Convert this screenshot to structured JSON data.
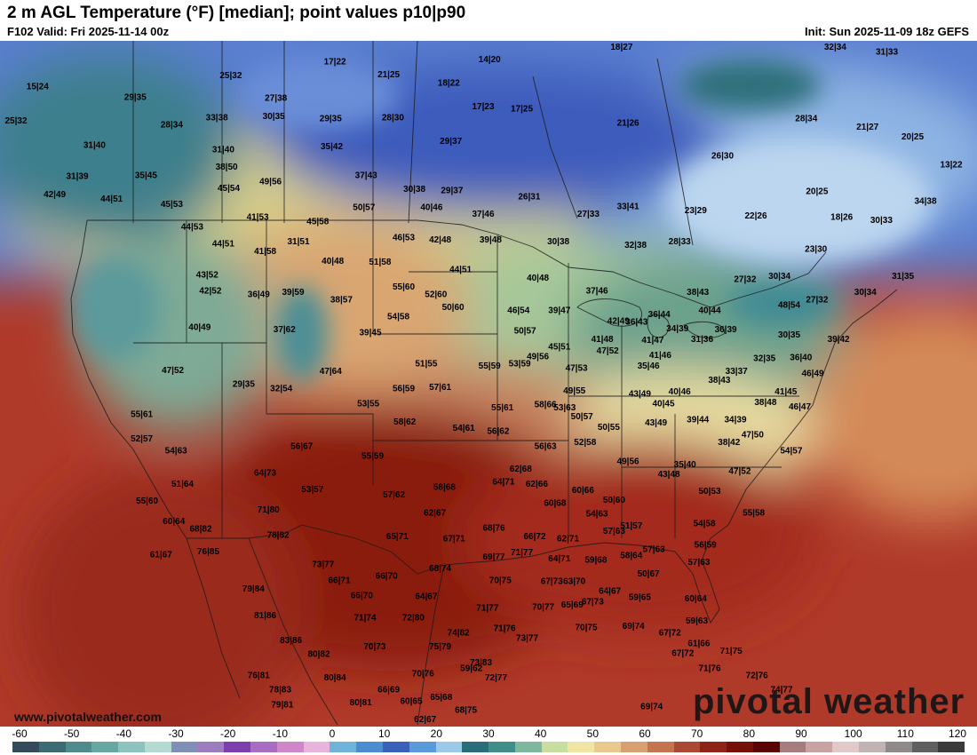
{
  "header": {
    "title": "2 m AGL Temperature (°F) [median]; point values p10|p90",
    "valid": "F102 Valid: Fri 2025-11-14 00z",
    "init": "Init: Sun 2025-11-09 18z GEFS"
  },
  "footer": {
    "website": "www.pivotalweather.com",
    "watermark": "pivotal weather"
  },
  "colorbar": {
    "ticks": [
      "-60",
      "-50",
      "-40",
      "-30",
      "-20",
      "-10",
      "0",
      "10",
      "20",
      "30",
      "40",
      "50",
      "60",
      "70",
      "80",
      "90",
      "100",
      "110",
      "120"
    ],
    "colors": [
      "#334b5a",
      "#3c6b73",
      "#4e8b8a",
      "#67a8a3",
      "#8cc3bc",
      "#b3dbd2",
      "#7f8fb6",
      "#9c7ec0",
      "#7d3fae",
      "#a86cc2",
      "#cf87c9",
      "#e8b3dd",
      "#6fb3d8",
      "#4a8ed0",
      "#3862b8",
      "#5a9ad8",
      "#9cc9e8",
      "#2a6e7a",
      "#3f8e8a",
      "#7fb8a0",
      "#c8dea0",
      "#efe6a6",
      "#e9c98c",
      "#d8a071",
      "#c47550",
      "#aa4a34",
      "#8e2418",
      "#741008",
      "#5a0404",
      "#a67c7c",
      "#c9a3a3",
      "#e2c9c9",
      "#bfb3b3",
      "#8e8a8a",
      "#606060",
      "#3a3a3a"
    ]
  },
  "labels": [
    {
      "t": "15|24",
      "lon": -134.5,
      "lat": 56.5
    },
    {
      "t": "25|32",
      "lon": -116.5,
      "lat": 57.5
    },
    {
      "t": "17|22",
      "lon": -106.8,
      "lat": 58.8
    },
    {
      "t": "21|25",
      "lon": -101.8,
      "lat": 57.6
    },
    {
      "t": "14|20",
      "lon": -92.4,
      "lat": 59.0
    },
    {
      "t": "18|22",
      "lon": -96.2,
      "lat": 56.8
    },
    {
      "t": "18|27",
      "lon": -80.1,
      "lat": 60.6
    },
    {
      "t": "32|34",
      "lon": -60.2,
      "lat": 60.4
    },
    {
      "t": "31|33",
      "lon": -55.4,
      "lat": 59.7
    },
    {
      "t": "25|32",
      "lon": -136.9,
      "lat": 53.3
    },
    {
      "t": "29|35",
      "lon": -125.4,
      "lat": 55.5
    },
    {
      "t": "27|38",
      "lon": -112.3,
      "lat": 55.4
    },
    {
      "t": "28|30",
      "lon": -101.4,
      "lat": 53.6
    },
    {
      "t": "17|23",
      "lon": -93.0,
      "lat": 54.6
    },
    {
      "t": "17|25",
      "lon": -89.4,
      "lat": 54.4
    },
    {
      "t": "31|40",
      "lon": -129.2,
      "lat": 51.0
    },
    {
      "t": "28|34",
      "lon": -122.0,
      "lat": 52.9
    },
    {
      "t": "33|38",
      "lon": -117.8,
      "lat": 53.6
    },
    {
      "t": "30|35",
      "lon": -112.5,
      "lat": 53.7
    },
    {
      "t": "29|35",
      "lon": -107.2,
      "lat": 53.5
    },
    {
      "t": "29|37",
      "lon": -96.0,
      "lat": 51.4
    },
    {
      "t": "21|26",
      "lon": -79.5,
      "lat": 53.1
    },
    {
      "t": "28|34",
      "lon": -62.9,
      "lat": 53.5
    },
    {
      "t": "21|27",
      "lon": -57.2,
      "lat": 52.7
    },
    {
      "t": "20|25",
      "lon": -53.0,
      "lat": 51.8
    },
    {
      "t": "13|22",
      "lon": -49.4,
      "lat": 49.2
    },
    {
      "t": "31|39",
      "lon": -130.8,
      "lat": 48.1
    },
    {
      "t": "31|40",
      "lon": -117.2,
      "lat": 50.6
    },
    {
      "t": "35|42",
      "lon": -107.1,
      "lat": 50.9
    },
    {
      "t": "26|30",
      "lon": -70.7,
      "lat": 50.0
    },
    {
      "t": "42|49",
      "lon": -132.9,
      "lat": 46.4
    },
    {
      "t": "38|50",
      "lon": -116.9,
      "lat": 49.0
    },
    {
      "t": "35|45",
      "lon": -124.4,
      "lat": 48.2
    },
    {
      "t": "37|43",
      "lon": -103.9,
      "lat": 48.2
    },
    {
      "t": "44|51",
      "lon": -127.6,
      "lat": 46.0
    },
    {
      "t": "45|54",
      "lon": -116.7,
      "lat": 47.0
    },
    {
      "t": "49|56",
      "lon": -112.8,
      "lat": 47.6
    },
    {
      "t": "30|38",
      "lon": -99.4,
      "lat": 46.9
    },
    {
      "t": "29|37",
      "lon": -95.9,
      "lat": 46.8
    },
    {
      "t": "26|31",
      "lon": -88.7,
      "lat": 46.2
    },
    {
      "t": "20|25",
      "lon": -61.9,
      "lat": 46.7
    },
    {
      "t": "34|38",
      "lon": -51.8,
      "lat": 45.8
    },
    {
      "t": "45|53",
      "lon": -122.0,
      "lat": 45.5
    },
    {
      "t": "50|57",
      "lon": -104.1,
      "lat": 45.2
    },
    {
      "t": "40|46",
      "lon": -97.8,
      "lat": 45.2
    },
    {
      "t": "37|46",
      "lon": -93.0,
      "lat": 44.6
    },
    {
      "t": "27|33",
      "lon": -83.2,
      "lat": 44.6
    },
    {
      "t": "33|41",
      "lon": -79.5,
      "lat": 45.3
    },
    {
      "t": "23|29",
      "lon": -73.2,
      "lat": 44.9
    },
    {
      "t": "22|26",
      "lon": -67.6,
      "lat": 44.4
    },
    {
      "t": "18|26",
      "lon": -59.6,
      "lat": 44.3
    },
    {
      "t": "30|33",
      "lon": -55.9,
      "lat": 44.0
    },
    {
      "t": "44|53",
      "lon": -120.1,
      "lat": 43.4
    },
    {
      "t": "41|53",
      "lon": -114.0,
      "lat": 44.3
    },
    {
      "t": "45|58",
      "lon": -108.4,
      "lat": 43.9
    },
    {
      "t": "46|53",
      "lon": -100.4,
      "lat": 42.4
    },
    {
      "t": "42|48",
      "lon": -97.0,
      "lat": 42.2
    },
    {
      "t": "39|48",
      "lon": -92.3,
      "lat": 42.2
    },
    {
      "t": "30|38",
      "lon": -86.0,
      "lat": 42.0
    },
    {
      "t": "32|38",
      "lon": -78.8,
      "lat": 41.7
    },
    {
      "t": "28|33",
      "lon": -74.7,
      "lat": 42.0
    },
    {
      "t": "23|30",
      "lon": -62.0,
      "lat": 41.3
    },
    {
      "t": "44|51",
      "lon": -117.2,
      "lat": 41.8
    },
    {
      "t": "41|58",
      "lon": -113.3,
      "lat": 41.1
    },
    {
      "t": "31|51",
      "lon": -110.2,
      "lat": 42.0
    },
    {
      "t": "40|48",
      "lon": -107.0,
      "lat": 40.2
    },
    {
      "t": "51|58",
      "lon": -102.6,
      "lat": 40.1
    },
    {
      "t": "44|51",
      "lon": -95.1,
      "lat": 39.4
    },
    {
      "t": "40|48",
      "lon": -87.9,
      "lat": 38.6
    },
    {
      "t": "27|32",
      "lon": -68.6,
      "lat": 38.5
    },
    {
      "t": "30|34",
      "lon": -65.4,
      "lat": 38.8
    },
    {
      "t": "30|34",
      "lon": -57.4,
      "lat": 37.3
    },
    {
      "t": "31|35",
      "lon": -53.9,
      "lat": 38.8
    },
    {
      "t": "43|52",
      "lon": -118.7,
      "lat": 38.9
    },
    {
      "t": "55|60",
      "lon": -100.4,
      "lat": 37.8
    },
    {
      "t": "52|60",
      "lon": -97.4,
      "lat": 37.1
    },
    {
      "t": "37|46",
      "lon": -82.4,
      "lat": 37.4
    },
    {
      "t": "38|43",
      "lon": -73.0,
      "lat": 37.3
    },
    {
      "t": "48|54",
      "lon": -64.5,
      "lat": 36.1
    },
    {
      "t": "27|32",
      "lon": -61.9,
      "lat": 36.6
    },
    {
      "t": "42|52",
      "lon": -118.4,
      "lat": 37.4
    },
    {
      "t": "36|49",
      "lon": -113.9,
      "lat": 37.1
    },
    {
      "t": "39|59",
      "lon": -110.7,
      "lat": 37.3
    },
    {
      "t": "38|57",
      "lon": -106.2,
      "lat": 36.6
    },
    {
      "t": "50|60",
      "lon": -95.8,
      "lat": 35.9
    },
    {
      "t": "46|54",
      "lon": -89.7,
      "lat": 35.6
    },
    {
      "t": "39|47",
      "lon": -85.9,
      "lat": 35.6
    },
    {
      "t": "40|44",
      "lon": -71.9,
      "lat": 35.6
    },
    {
      "t": "36|44",
      "lon": -76.6,
      "lat": 35.2
    },
    {
      "t": "54|58",
      "lon": -100.9,
      "lat": 35.0
    },
    {
      "t": "42|49",
      "lon": -80.4,
      "lat": 34.6
    },
    {
      "t": "36|43",
      "lon": -78.7,
      "lat": 34.5
    },
    {
      "t": "34|39",
      "lon": -74.9,
      "lat": 33.9
    },
    {
      "t": "36|39",
      "lon": -70.4,
      "lat": 33.8
    },
    {
      "t": "40|49",
      "lon": -119.4,
      "lat": 34.0
    },
    {
      "t": "37|62",
      "lon": -111.5,
      "lat": 33.8
    },
    {
      "t": "39|45",
      "lon": -103.5,
      "lat": 33.5
    },
    {
      "t": "50|57",
      "lon": -89.1,
      "lat": 33.7
    },
    {
      "t": "41|48",
      "lon": -81.9,
      "lat": 32.9
    },
    {
      "t": "41|47",
      "lon": -77.2,
      "lat": 32.8
    },
    {
      "t": "31|36",
      "lon": -72.6,
      "lat": 32.9
    },
    {
      "t": "30|35",
      "lon": -64.5,
      "lat": 33.3
    },
    {
      "t": "39|42",
      "lon": -59.9,
      "lat": 32.9
    },
    {
      "t": "45|51",
      "lon": -85.9,
      "lat": 32.2
    },
    {
      "t": "47|52",
      "lon": -81.4,
      "lat": 31.8
    },
    {
      "t": "41|46",
      "lon": -76.5,
      "lat": 31.4
    },
    {
      "t": "32|35",
      "lon": -66.8,
      "lat": 31.1
    },
    {
      "t": "36|40",
      "lon": -63.4,
      "lat": 31.2
    },
    {
      "t": "49|56",
      "lon": -87.9,
      "lat": 31.3
    },
    {
      "t": "47|64",
      "lon": -107.2,
      "lat": 29.9
    },
    {
      "t": "51|55",
      "lon": -98.3,
      "lat": 30.6
    },
    {
      "t": "55|59",
      "lon": -92.4,
      "lat": 30.4
    },
    {
      "t": "53|59",
      "lon": -89.6,
      "lat": 30.6
    },
    {
      "t": "47|53",
      "lon": -84.3,
      "lat": 30.2
    },
    {
      "t": "35|46",
      "lon": -77.6,
      "lat": 30.4
    },
    {
      "t": "46|49",
      "lon": -62.3,
      "lat": 29.7
    },
    {
      "t": "47|52",
      "lon": -121.9,
      "lat": 30.0
    },
    {
      "t": "29|35",
      "lon": -115.3,
      "lat": 28.7
    },
    {
      "t": "32|54",
      "lon": -111.8,
      "lat": 28.3
    },
    {
      "t": "56|59",
      "lon": -100.4,
      "lat": 28.3
    },
    {
      "t": "57|61",
      "lon": -97.0,
      "lat": 28.4
    },
    {
      "t": "49|55",
      "lon": -84.5,
      "lat": 28.1
    },
    {
      "t": "43|49",
      "lon": -78.4,
      "lat": 27.8
    },
    {
      "t": "40|46",
      "lon": -74.7,
      "lat": 28.0
    },
    {
      "t": "33|37",
      "lon": -69.4,
      "lat": 29.9
    },
    {
      "t": "38|43",
      "lon": -71.0,
      "lat": 29.1
    },
    {
      "t": "41|45",
      "lon": -64.8,
      "lat": 28.0
    },
    {
      "t": "53|55",
      "lon": -103.7,
      "lat": 26.9
    },
    {
      "t": "55|61",
      "lon": -91.2,
      "lat": 26.5
    },
    {
      "t": "58|66",
      "lon": -87.2,
      "lat": 26.8
    },
    {
      "t": "53|63",
      "lon": -85.4,
      "lat": 26.5
    },
    {
      "t": "40|45",
      "lon": -76.2,
      "lat": 26.9
    },
    {
      "t": "38|48",
      "lon": -66.7,
      "lat": 27.0
    },
    {
      "t": "46|47",
      "lon": -63.5,
      "lat": 26.6
    },
    {
      "t": "55|61",
      "lon": -124.8,
      "lat": 25.9
    },
    {
      "t": "58|62",
      "lon": -100.3,
      "lat": 25.2
    },
    {
      "t": "50|57",
      "lon": -83.8,
      "lat": 25.7
    },
    {
      "t": "43|49",
      "lon": -76.9,
      "lat": 25.1
    },
    {
      "t": "39|44",
      "lon": -73.0,
      "lat": 25.4
    },
    {
      "t": "34|39",
      "lon": -69.5,
      "lat": 25.4
    },
    {
      "t": "52|57",
      "lon": -124.8,
      "lat": 23.6
    },
    {
      "t": "54|61",
      "lon": -94.8,
      "lat": 24.6
    },
    {
      "t": "56|62",
      "lon": -91.6,
      "lat": 24.3
    },
    {
      "t": "50|55",
      "lon": -81.3,
      "lat": 24.7
    },
    {
      "t": "47|50",
      "lon": -67.9,
      "lat": 24.0
    },
    {
      "t": "56|67",
      "lon": -109.9,
      "lat": 22.9
    },
    {
      "t": "54|63",
      "lon": -121.6,
      "lat": 22.5
    },
    {
      "t": "52|58",
      "lon": -83.5,
      "lat": 23.3
    },
    {
      "t": "38|42",
      "lon": -70.1,
      "lat": 23.3
    },
    {
      "t": "55|59",
      "lon": -103.3,
      "lat": 22.0
    },
    {
      "t": "56|63",
      "lon": -87.2,
      "lat": 22.9
    },
    {
      "t": "54|57",
      "lon": -64.3,
      "lat": 22.5
    },
    {
      "t": "64|73",
      "lon": -113.3,
      "lat": 20.4
    },
    {
      "t": "49|56",
      "lon": -79.5,
      "lat": 21.5
    },
    {
      "t": "35|40",
      "lon": -74.2,
      "lat": 21.2
    },
    {
      "t": "43|48",
      "lon": -75.7,
      "lat": 20.3
    },
    {
      "t": "47|52",
      "lon": -69.1,
      "lat": 20.6
    },
    {
      "t": "62|68",
      "lon": -89.5,
      "lat": 20.8
    },
    {
      "t": "51|64",
      "lon": -121.0,
      "lat": 19.4
    },
    {
      "t": "53|57",
      "lon": -108.9,
      "lat": 18.9
    },
    {
      "t": "57|62",
      "lon": -101.3,
      "lat": 18.4
    },
    {
      "t": "58|68",
      "lon": -96.6,
      "lat": 19.1
    },
    {
      "t": "64|71",
      "lon": -91.1,
      "lat": 19.6
    },
    {
      "t": "62|66",
      "lon": -88.0,
      "lat": 19.4
    },
    {
      "t": "60|66",
      "lon": -83.7,
      "lat": 18.8
    },
    {
      "t": "50|53",
      "lon": -71.9,
      "lat": 18.7
    },
    {
      "t": "55|60",
      "lon": -124.3,
      "lat": 17.8
    },
    {
      "t": "71|80",
      "lon": -113.0,
      "lat": 17.0
    },
    {
      "t": "60|68",
      "lon": -86.3,
      "lat": 17.6
    },
    {
      "t": "50|60",
      "lon": -80.8,
      "lat": 17.9
    },
    {
      "t": "62|67",
      "lon": -97.5,
      "lat": 16.7
    },
    {
      "t": "54|63",
      "lon": -82.4,
      "lat": 16.6
    },
    {
      "t": "55|58",
      "lon": -67.8,
      "lat": 16.7
    },
    {
      "t": "60|64",
      "lon": -121.8,
      "lat": 15.9
    },
    {
      "t": "68|76",
      "lon": -92.0,
      "lat": 15.3
    },
    {
      "t": "51|57",
      "lon": -79.2,
      "lat": 15.5
    },
    {
      "t": "54|58",
      "lon": -72.4,
      "lat": 15.7
    },
    {
      "t": "68|82",
      "lon": -119.3,
      "lat": 15.2
    },
    {
      "t": "78|82",
      "lon": -112.1,
      "lat": 14.6
    },
    {
      "t": "65|71",
      "lon": -101.0,
      "lat": 14.5
    },
    {
      "t": "67|71",
      "lon": -95.7,
      "lat": 14.3
    },
    {
      "t": "66|72",
      "lon": -88.2,
      "lat": 14.5
    },
    {
      "t": "62|71",
      "lon": -85.1,
      "lat": 14.3
    },
    {
      "t": "57|63",
      "lon": -80.8,
      "lat": 15.0
    },
    {
      "t": "61|67",
      "lon": -123.0,
      "lat": 12.8
    },
    {
      "t": "76|85",
      "lon": -118.6,
      "lat": 13.1
    },
    {
      "t": "73|77",
      "lon": -107.9,
      "lat": 11.9
    },
    {
      "t": "71|77",
      "lon": -89.4,
      "lat": 13.0
    },
    {
      "t": "69|77",
      "lon": -92.0,
      "lat": 12.6
    },
    {
      "t": "64|71",
      "lon": -85.9,
      "lat": 12.4
    },
    {
      "t": "59|68",
      "lon": -82.5,
      "lat": 12.3
    },
    {
      "t": "58|64",
      "lon": -79.2,
      "lat": 12.7
    },
    {
      "t": "57|63",
      "lon": -77.1,
      "lat": 13.3
    },
    {
      "t": "56|59",
      "lon": -72.3,
      "lat": 13.7
    },
    {
      "t": "57|63",
      "lon": -72.9,
      "lat": 12.1
    },
    {
      "t": "66|71",
      "lon": -106.4,
      "lat": 10.4
    },
    {
      "t": "66|70",
      "lon": -102.0,
      "lat": 10.8
    },
    {
      "t": "68|74",
      "lon": -97.0,
      "lat": 11.5
    },
    {
      "t": "70|75",
      "lon": -91.4,
      "lat": 10.4
    },
    {
      "t": "67|73",
      "lon": -86.6,
      "lat": 10.3
    },
    {
      "t": "63|70",
      "lon": -84.5,
      "lat": 10.3
    },
    {
      "t": "50|67",
      "lon": -77.6,
      "lat": 11.0
    },
    {
      "t": "79|84",
      "lon": -114.4,
      "lat": 9.6
    },
    {
      "t": "66|70",
      "lon": -104.3,
      "lat": 9.0
    },
    {
      "t": "64|67",
      "lon": -98.3,
      "lat": 8.9
    },
    {
      "t": "64|67",
      "lon": -81.2,
      "lat": 9.4
    },
    {
      "t": "59|65",
      "lon": -78.4,
      "lat": 8.8
    },
    {
      "t": "60|64",
      "lon": -73.2,
      "lat": 8.7
    },
    {
      "t": "67|73",
      "lon": -82.8,
      "lat": 8.4
    },
    {
      "t": "70|77",
      "lon": -87.4,
      "lat": 7.9
    },
    {
      "t": "65|69",
      "lon": -84.7,
      "lat": 8.1
    },
    {
      "t": "81|86",
      "lon": -113.3,
      "lat": 7.1
    },
    {
      "t": "71|74",
      "lon": -104.0,
      "lat": 6.9
    },
    {
      "t": "72|80",
      "lon": -99.5,
      "lat": 6.9
    },
    {
      "t": "71|77",
      "lon": -92.6,
      "lat": 7.8
    },
    {
      "t": "59|63",
      "lon": -73.1,
      "lat": 6.6
    },
    {
      "t": "71|76",
      "lon": -91.0,
      "lat": 5.9
    },
    {
      "t": "74|82",
      "lon": -95.3,
      "lat": 5.5
    },
    {
      "t": "70|75",
      "lon": -83.4,
      "lat": 6.0
    },
    {
      "t": "69|74",
      "lon": -79.0,
      "lat": 6.1
    },
    {
      "t": "73|77",
      "lon": -88.9,
      "lat": 5.0
    },
    {
      "t": "67|72",
      "lon": -75.6,
      "lat": 5.5
    },
    {
      "t": "83|86",
      "lon": -110.9,
      "lat": 4.8
    },
    {
      "t": "70|73",
      "lon": -103.1,
      "lat": 4.2
    },
    {
      "t": "75|79",
      "lon": -97.0,
      "lat": 4.2
    },
    {
      "t": "61|66",
      "lon": -72.9,
      "lat": 4.5
    },
    {
      "t": "67|72",
      "lon": -74.4,
      "lat": 3.6
    },
    {
      "t": "71|75",
      "lon": -69.9,
      "lat": 3.8
    },
    {
      "t": "80|82",
      "lon": -108.3,
      "lat": 3.5
    },
    {
      "t": "73|83",
      "lon": -93.2,
      "lat": 2.7
    },
    {
      "t": "71|76",
      "lon": -71.9,
      "lat": 2.2
    },
    {
      "t": "70|76",
      "lon": -98.6,
      "lat": 1.7
    },
    {
      "t": "59|62",
      "lon": -94.1,
      "lat": 2.2
    },
    {
      "t": "76|81",
      "lon": -113.9,
      "lat": 1.5
    },
    {
      "t": "80|84",
      "lon": -106.8,
      "lat": 1.3
    },
    {
      "t": "72|77",
      "lon": -91.8,
      "lat": 1.3
    },
    {
      "t": "72|76",
      "lon": -67.5,
      "lat": 1.5
    },
    {
      "t": "78|83",
      "lon": -111.9,
      "lat": 0.2
    },
    {
      "t": "66|69",
      "lon": -101.8,
      "lat": 0.2
    },
    {
      "t": "65|68",
      "lon": -96.9,
      "lat": -0.5
    },
    {
      "t": "74|77",
      "lon": -65.2,
      "lat": 0.2
    },
    {
      "t": "79|81",
      "lon": -111.7,
      "lat": -1.2
    },
    {
      "t": "80|81",
      "lon": -104.4,
      "lat": -1.0
    },
    {
      "t": "60|65",
      "lon": -99.7,
      "lat": -0.9
    },
    {
      "t": "68|75",
      "lon": -94.6,
      "lat": -1.7
    },
    {
      "t": "69|74",
      "lon": -77.3,
      "lat": -1.4
    },
    {
      "t": "62|67",
      "lon": -98.4,
      "lat": -2.6
    }
  ]
}
